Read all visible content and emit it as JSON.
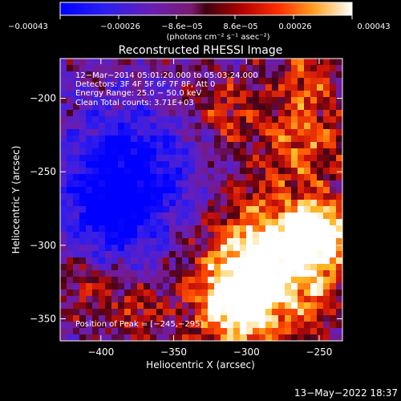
{
  "colorbar": {
    "tick_labels": [
      "−0.00043",
      "−0.00026",
      "−8.6e−05",
      "8.6e−05",
      "0.00026",
      "0.00043"
    ],
    "units_label": "(photons cm⁻² s⁻¹ asec⁻²)",
    "colors": [
      "#0000ff",
      "#3a1fe0",
      "#6a1fb0",
      "#8a1f80",
      "#6a0a14",
      "#c01010",
      "#ff5a00",
      "#ffd040",
      "#ffffff"
    ]
  },
  "chart_data": {
    "type": "heatmap",
    "title": "Reconstructed RHESSI Image",
    "xlabel": "Heliocentric X (arcsec)",
    "ylabel": "Heliocentric Y (arcsec)",
    "xlim": [
      -428,
      -234
    ],
    "ylim": [
      -365,
      -173
    ],
    "x_ticks": [
      -400,
      -350,
      -300,
      -250
    ],
    "y_ticks": [
      -200,
      -250,
      -300,
      -350
    ],
    "x_tick_labels": [
      "−400",
      "−350",
      "−300",
      "−250"
    ],
    "y_tick_labels": [
      "−200",
      "−250",
      "−300",
      "−350"
    ],
    "value_range": [
      -0.00043,
      0.00043
    ],
    "peak_position": [
      -245,
      -295
    ],
    "annotations": [
      "12−Mar−2014 05:01:20.000 to 05:03:24.000",
      "Detectors: 3F 4F 5F 6F 7F 8F, Att 0",
      "Energy Range: 25.0 − 50.0 keV",
      "Clean    Total counts: 3.71E+03"
    ],
    "peak_label": "Position of Peak = [−245,−295]"
  },
  "footer": {
    "timestamp": "13−May−2022 18:37"
  }
}
